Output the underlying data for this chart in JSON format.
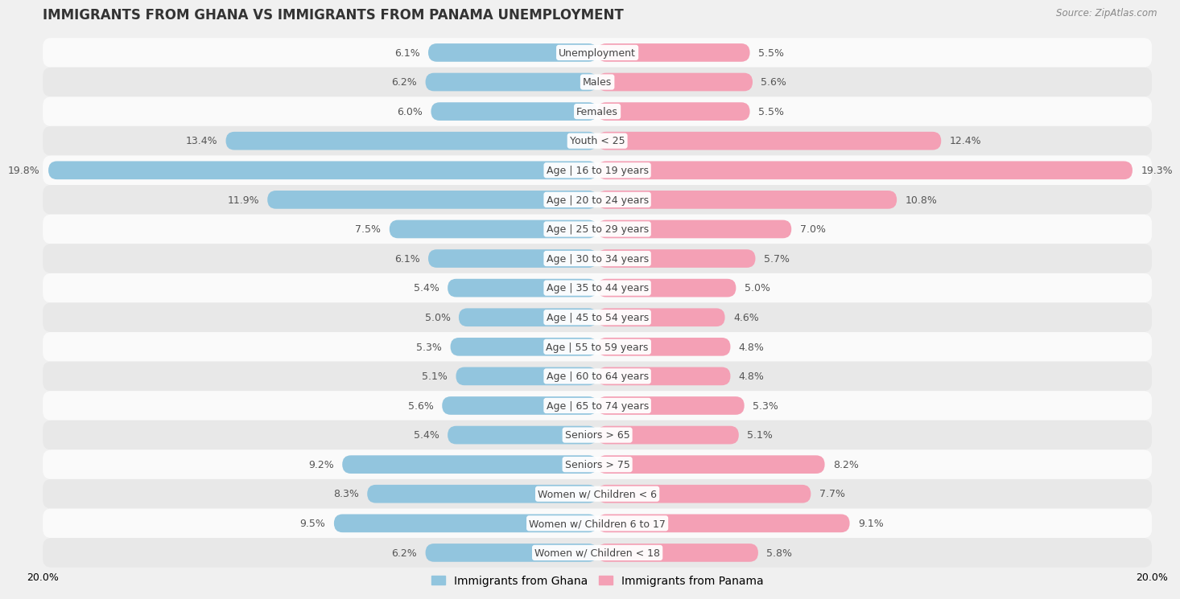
{
  "title": "IMMIGRANTS FROM GHANA VS IMMIGRANTS FROM PANAMA UNEMPLOYMENT",
  "source": "Source: ZipAtlas.com",
  "categories": [
    "Unemployment",
    "Males",
    "Females",
    "Youth < 25",
    "Age | 16 to 19 years",
    "Age | 20 to 24 years",
    "Age | 25 to 29 years",
    "Age | 30 to 34 years",
    "Age | 35 to 44 years",
    "Age | 45 to 54 years",
    "Age | 55 to 59 years",
    "Age | 60 to 64 years",
    "Age | 65 to 74 years",
    "Seniors > 65",
    "Seniors > 75",
    "Women w/ Children < 6",
    "Women w/ Children 6 to 17",
    "Women w/ Children < 18"
  ],
  "ghana_values": [
    6.1,
    6.2,
    6.0,
    13.4,
    19.8,
    11.9,
    7.5,
    6.1,
    5.4,
    5.0,
    5.3,
    5.1,
    5.6,
    5.4,
    9.2,
    8.3,
    9.5,
    6.2
  ],
  "panama_values": [
    5.5,
    5.6,
    5.5,
    12.4,
    19.3,
    10.8,
    7.0,
    5.7,
    5.0,
    4.6,
    4.8,
    4.8,
    5.3,
    5.1,
    8.2,
    7.7,
    9.1,
    5.8
  ],
  "ghana_color": "#92c5de",
  "panama_color": "#f4a0b5",
  "bar_height": 0.62,
  "xlim": 20.0,
  "bg_color": "#f0f0f0",
  "row_colors": [
    "#fafafa",
    "#e8e8e8"
  ],
  "title_fontsize": 12,
  "label_fontsize": 9,
  "value_fontsize": 9,
  "legend_fontsize": 10,
  "source_fontsize": 8.5,
  "text_color": "#555555"
}
